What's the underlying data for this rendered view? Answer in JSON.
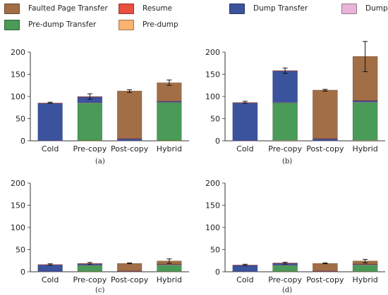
{
  "legend": [
    {
      "label": "Faulted Page Transfer",
      "color": "#a16e46"
    },
    {
      "label": "Resume",
      "color": "#e8503f"
    },
    {
      "label": "Dump Transfer",
      "color": "#3b529c"
    },
    {
      "label": "Dump",
      "color": "#e9b4d8"
    },
    {
      "label": "Pre-dump Transfer",
      "color": "#4a9a58"
    },
    {
      "label": "Pre-dump",
      "color": "#f9b26f"
    }
  ],
  "chart_data": [
    {
      "type": "bar",
      "stacked": true,
      "panel_label": "(a)",
      "categories": [
        "Cold",
        "Pre-copy",
        "Post-copy",
        "Hybrid"
      ],
      "ylim": [
        0,
        200
      ],
      "yticks": [
        0,
        50,
        100,
        150,
        200
      ],
      "series": [
        {
          "name": "Pre-dump",
          "values": [
            0,
            0.5,
            0,
            0.5
          ]
        },
        {
          "name": "Pre-dump Transfer",
          "values": [
            0,
            85,
            0,
            86
          ]
        },
        {
          "name": "Dump",
          "values": [
            0.5,
            0.5,
            0.5,
            0.5
          ]
        },
        {
          "name": "Dump Transfer",
          "values": [
            84,
            13,
            4,
            2
          ]
        },
        {
          "name": "Resume",
          "values": [
            1,
            1,
            1,
            1
          ]
        },
        {
          "name": "Faulted Page Transfer",
          "values": [
            0,
            0,
            107,
            41
          ]
        }
      ],
      "totals": [
        86,
        100,
        112,
        131
      ],
      "error": [
        1,
        6,
        3,
        6
      ]
    },
    {
      "type": "bar",
      "stacked": true,
      "panel_label": "(b)",
      "categories": [
        "Cold",
        "Pre-copy",
        "Post-copy",
        "Hybrid"
      ],
      "ylim": [
        0,
        200
      ],
      "yticks": [
        0,
        50,
        100,
        150,
        200
      ],
      "series": [
        {
          "name": "Pre-dump",
          "values": [
            0,
            1,
            0,
            1
          ]
        },
        {
          "name": "Pre-dump Transfer",
          "values": [
            0,
            85,
            0,
            86
          ]
        },
        {
          "name": "Dump",
          "values": [
            0.5,
            0.5,
            0.5,
            0.5
          ]
        },
        {
          "name": "Dump Transfer",
          "values": [
            85,
            71,
            4,
            3
          ]
        },
        {
          "name": "Resume",
          "values": [
            1,
            1,
            1,
            1
          ]
        },
        {
          "name": "Faulted Page Transfer",
          "values": [
            0,
            0,
            109,
            99
          ]
        }
      ],
      "totals": [
        87,
        158,
        114,
        190
      ],
      "error": [
        2,
        6,
        2,
        34
      ]
    },
    {
      "type": "bar",
      "stacked": true,
      "panel_label": "(c)",
      "categories": [
        "Cold",
        "Pre-copy",
        "Post-copy",
        "Hybrid"
      ],
      "ylim": [
        0,
        200
      ],
      "yticks": [
        0,
        50,
        100,
        150,
        200
      ],
      "series": [
        {
          "name": "Pre-dump",
          "values": [
            0,
            0.5,
            0,
            0.5
          ]
        },
        {
          "name": "Pre-dump Transfer",
          "values": [
            0,
            14,
            0,
            15
          ]
        },
        {
          "name": "Dump",
          "values": [
            0.5,
            0.5,
            0.5,
            0.5
          ]
        },
        {
          "name": "Dump Transfer",
          "values": [
            15,
            3,
            1,
            1
          ]
        },
        {
          "name": "Resume",
          "values": [
            1,
            1,
            0.5,
            0.5
          ]
        },
        {
          "name": "Faulted Page Transfer",
          "values": [
            0,
            0,
            17,
            7
          ]
        }
      ],
      "totals": [
        16.5,
        19,
        19,
        24
      ],
      "error": [
        1.5,
        2,
        1,
        5
      ]
    },
    {
      "type": "bar",
      "stacked": true,
      "panel_label": "(d)",
      "categories": [
        "Cold",
        "Pre-copy",
        "Post-copy",
        "Hybrid"
      ],
      "ylim": [
        0,
        200
      ],
      "yticks": [
        0,
        50,
        100,
        150,
        200
      ],
      "series": [
        {
          "name": "Pre-dump",
          "values": [
            0,
            0.5,
            0,
            0.5
          ]
        },
        {
          "name": "Pre-dump Transfer",
          "values": [
            0,
            14,
            0,
            15
          ]
        },
        {
          "name": "Dump",
          "values": [
            0.5,
            0.5,
            0.5,
            0.5
          ]
        },
        {
          "name": "Dump Transfer",
          "values": [
            14,
            4,
            1,
            1
          ]
        },
        {
          "name": "Resume",
          "values": [
            1,
            1,
            0.5,
            0.5
          ]
        },
        {
          "name": "Faulted Page Transfer",
          "values": [
            0,
            0,
            17,
            7
          ]
        }
      ],
      "totals": [
        15.5,
        19.5,
        19,
        24
      ],
      "error": [
        1.5,
        2,
        1,
        4
      ]
    }
  ]
}
